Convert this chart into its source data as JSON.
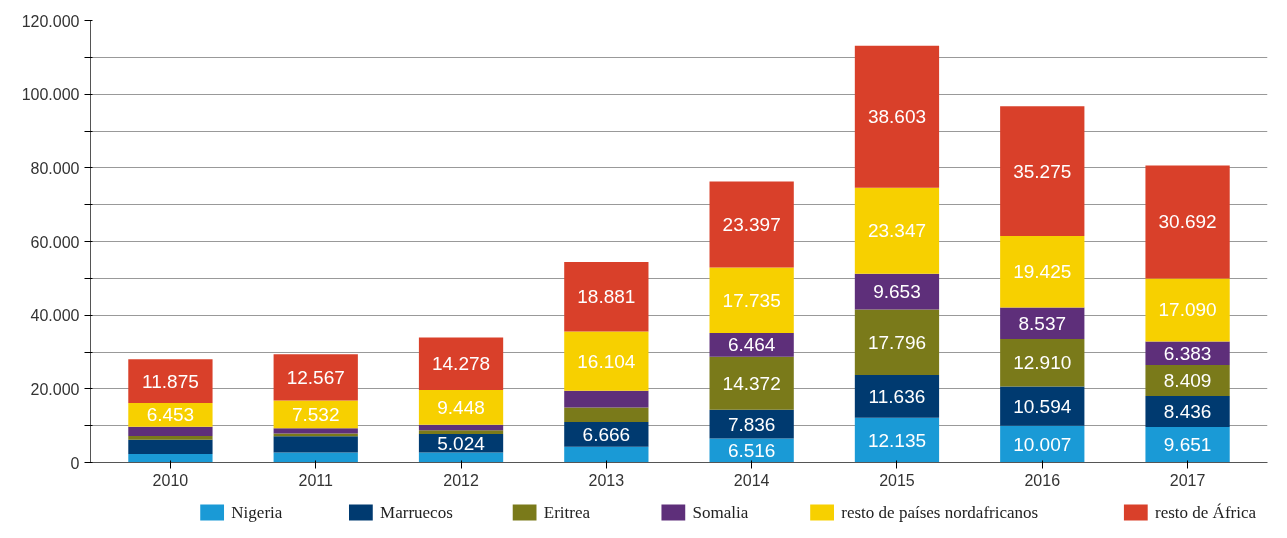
{
  "chart_data": {
    "type": "bar",
    "stacked": true,
    "categories": [
      "2010",
      "2011",
      "2012",
      "2013",
      "2014",
      "2015",
      "2016",
      "2017"
    ],
    "series": [
      {
        "name": "Nigeria",
        "color": "#1a9ad6",
        "values": [
          2300,
          2700,
          2700,
          4300,
          6516,
          12135,
          10007,
          9651
        ],
        "value_labels": [
          null,
          null,
          null,
          null,
          "6.516",
          "12.135",
          "10.007",
          "9.651"
        ]
      },
      {
        "name": "Marruecos",
        "color": "#003a70",
        "values": [
          3900,
          4400,
          5024,
          6666,
          7836,
          11636,
          10594,
          8436
        ],
        "value_labels": [
          null,
          null,
          "5.024",
          "6.666",
          "7.836",
          "11.636",
          "10.594",
          "8.436"
        ]
      },
      {
        "name": "Eritrea",
        "color": "#7a7a1a",
        "values": [
          1000,
          800,
          1000,
          4000,
          14372,
          17796,
          12910,
          8409
        ],
        "value_labels": [
          null,
          null,
          null,
          null,
          "14.372",
          "17.796",
          "12.910",
          "8.409"
        ]
      },
      {
        "name": "Somalia",
        "color": "#5e2f7a",
        "values": [
          2500,
          1400,
          1500,
          4500,
          6464,
          9653,
          8537,
          6383
        ],
        "value_labels": [
          null,
          null,
          null,
          null,
          "6.464",
          "9.653",
          "8.537",
          "6.383"
        ]
      },
      {
        "name": "resto de países nordafricanos",
        "color": "#f7d000",
        "values": [
          6453,
          7532,
          9448,
          16104,
          17735,
          23347,
          19425,
          17090
        ],
        "value_labels": [
          "6.453",
          "7.532",
          "9.448",
          "16.104",
          "17.735",
          "23.347",
          "19.425",
          "17.090"
        ]
      },
      {
        "name": "resto de África",
        "color": "#d9402a",
        "values": [
          11875,
          12567,
          14278,
          18881,
          23397,
          38603,
          35275,
          30692
        ],
        "value_labels": [
          "11.875",
          "12.567",
          "14.278",
          "18.881",
          "23.397",
          "38.603",
          "35.275",
          "30.692"
        ]
      }
    ],
    "ylim": [
      0,
      120000
    ],
    "yticks": [
      0,
      {
        "value": 10000,
        "label": null
      },
      {
        "value": 20000,
        "label": "20.000"
      },
      {
        "value": 30000,
        "label": null
      },
      {
        "value": 40000,
        "label": "40.000"
      },
      {
        "value": 50000,
        "label": null
      },
      {
        "value": 60000,
        "label": "60.000"
      },
      {
        "value": 70000,
        "label": null
      },
      {
        "value": 80000,
        "label": "80.000"
      },
      {
        "value": 90000,
        "label": null
      },
      {
        "value": 100000,
        "label": "100.000"
      },
      {
        "value": 110000,
        "label": null
      },
      {
        "value": 120000,
        "label": "120.000"
      }
    ],
    "grid": "y",
    "legend": "bottom"
  }
}
